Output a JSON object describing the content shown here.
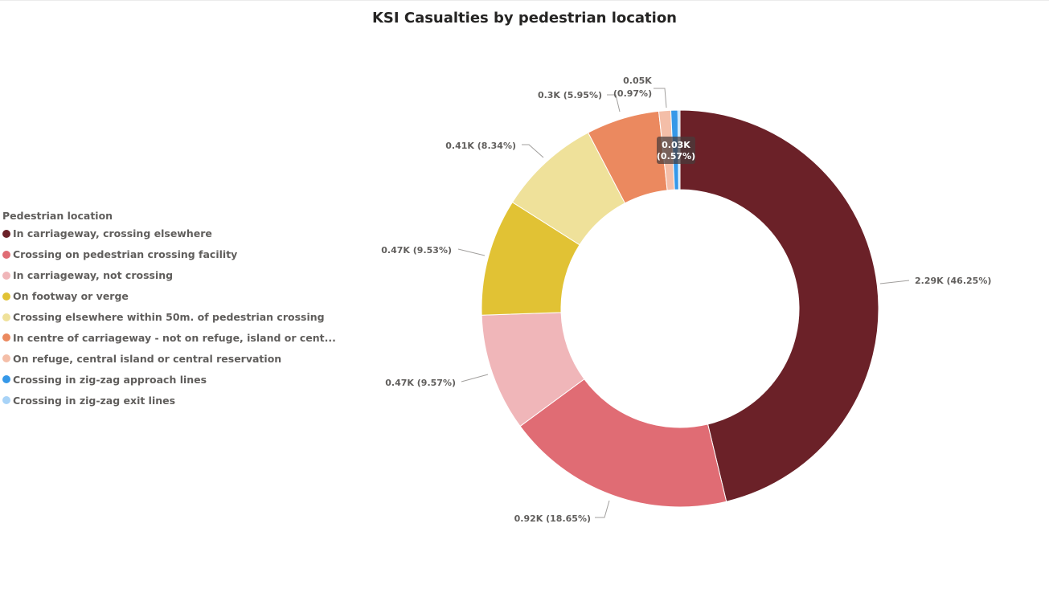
{
  "chart_data": {
    "type": "donut",
    "title": "KSI Casualties by pedestrian location",
    "legend_title": "Pedestrian location",
    "legend_position": "left",
    "slices": [
      {
        "name": "In carriageway, crossing elsewhere",
        "value": 2290,
        "percent": 46.25,
        "label": "2.29K (46.25%)",
        "color": "#6b2128"
      },
      {
        "name": "Crossing on pedestrian crossing facility",
        "value": 920,
        "percent": 18.65,
        "label": "0.92K (18.65%)",
        "color": "#e06c74"
      },
      {
        "name": "In carriageway, not crossing",
        "value": 470,
        "percent": 9.57,
        "label": "0.47K (9.57%)",
        "color": "#f0b6b9"
      },
      {
        "name": "On footway or verge",
        "value": 470,
        "percent": 9.53,
        "label": "0.47K (9.53%)",
        "color": "#e1c234"
      },
      {
        "name": "Crossing elsewhere within 50m. of pedestrian crossing",
        "value": 410,
        "percent": 8.34,
        "label": "0.41K (8.34%)",
        "color": "#efe19a"
      },
      {
        "name": "In centre of carriageway - not on refuge, island or cent...",
        "value": 300,
        "percent": 5.95,
        "label": "0.3K (5.95%)",
        "color": "#eb895f"
      },
      {
        "name": "On refuge, central island or central reservation",
        "value": 50,
        "percent": 0.97,
        "label": "0.05K (0.97%)",
        "color": "#f4bea8"
      },
      {
        "name": "Crossing in zig-zag approach lines",
        "value": 30,
        "percent": 0.57,
        "label": "0.03K (0.57%)",
        "color": "#3598e8"
      },
      {
        "name": "Crossing in zig-zag exit lines",
        "value": 10,
        "percent": 0.17,
        "label": "",
        "color": "#a8d3f7"
      }
    ]
  }
}
